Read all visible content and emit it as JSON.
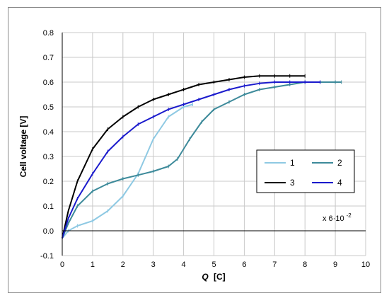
{
  "chart_data": {
    "type": "line",
    "title": "",
    "xlabel_var": "Q",
    "xlabel_unit": "[C]",
    "ylabel": "Cell voltage [V]",
    "xlim": [
      0,
      10
    ],
    "ylim": [
      -0.1,
      0.8
    ],
    "x_ticks": [
      "0",
      "1",
      "2",
      "3",
      "4",
      "5",
      "6",
      "7",
      "8",
      "9",
      "10"
    ],
    "y_ticks": [
      "-0.1",
      "0.0",
      "0.1",
      "0.2",
      "0.3",
      "0.4",
      "0.5",
      "0.6",
      "0.7",
      "0.8"
    ],
    "grid": true,
    "legend_position": "right",
    "annotation": {
      "base": "x 6·10",
      "exp": "-2"
    },
    "series": [
      {
        "name": "1",
        "color": "#8ec9e3",
        "points": [
          [
            0,
            -0.03
          ],
          [
            0.2,
            0.0
          ],
          [
            0.5,
            0.02
          ],
          [
            1.0,
            0.04
          ],
          [
            1.5,
            0.08
          ],
          [
            2.0,
            0.14
          ],
          [
            2.5,
            0.23
          ],
          [
            3.0,
            0.37
          ],
          [
            3.5,
            0.46
          ],
          [
            4.0,
            0.5
          ],
          [
            4.3,
            0.51
          ]
        ]
      },
      {
        "name": "2",
        "color": "#3d8a9a",
        "points": [
          [
            0,
            -0.03
          ],
          [
            0.2,
            0.03
          ],
          [
            0.5,
            0.1
          ],
          [
            1.0,
            0.16
          ],
          [
            1.5,
            0.19
          ],
          [
            2.0,
            0.21
          ],
          [
            2.5,
            0.225
          ],
          [
            3.0,
            0.24
          ],
          [
            3.5,
            0.26
          ],
          [
            3.8,
            0.29
          ],
          [
            4.2,
            0.37
          ],
          [
            4.6,
            0.44
          ],
          [
            5.0,
            0.49
          ],
          [
            5.5,
            0.52
          ],
          [
            6.0,
            0.55
          ],
          [
            6.5,
            0.57
          ],
          [
            7.0,
            0.58
          ],
          [
            7.5,
            0.59
          ],
          [
            8.0,
            0.6
          ],
          [
            8.5,
            0.6
          ],
          [
            9.0,
            0.6
          ],
          [
            9.2,
            0.6
          ]
        ]
      },
      {
        "name": "3",
        "color": "#000000",
        "points": [
          [
            0,
            -0.03
          ],
          [
            0.2,
            0.08
          ],
          [
            0.5,
            0.2
          ],
          [
            1.0,
            0.33
          ],
          [
            1.5,
            0.41
          ],
          [
            2.0,
            0.46
          ],
          [
            2.5,
            0.5
          ],
          [
            3.0,
            0.53
          ],
          [
            3.5,
            0.55
          ],
          [
            4.0,
            0.57
          ],
          [
            4.5,
            0.59
          ],
          [
            5.0,
            0.6
          ],
          [
            5.5,
            0.61
          ],
          [
            6.0,
            0.62
          ],
          [
            6.5,
            0.625
          ],
          [
            7.0,
            0.625
          ],
          [
            7.5,
            0.625
          ],
          [
            8.0,
            0.625
          ]
        ]
      },
      {
        "name": "4",
        "color": "#1a1acc",
        "points": [
          [
            0,
            -0.03
          ],
          [
            0.2,
            0.05
          ],
          [
            0.5,
            0.13
          ],
          [
            1.0,
            0.23
          ],
          [
            1.5,
            0.32
          ],
          [
            2.0,
            0.38
          ],
          [
            2.5,
            0.43
          ],
          [
            3.0,
            0.46
          ],
          [
            3.5,
            0.49
          ],
          [
            4.0,
            0.51
          ],
          [
            4.5,
            0.53
          ],
          [
            5.0,
            0.55
          ],
          [
            5.5,
            0.57
          ],
          [
            6.0,
            0.585
          ],
          [
            6.5,
            0.595
          ],
          [
            7.0,
            0.6
          ],
          [
            7.5,
            0.6
          ],
          [
            8.0,
            0.6
          ],
          [
            8.5,
            0.6
          ]
        ]
      }
    ]
  }
}
